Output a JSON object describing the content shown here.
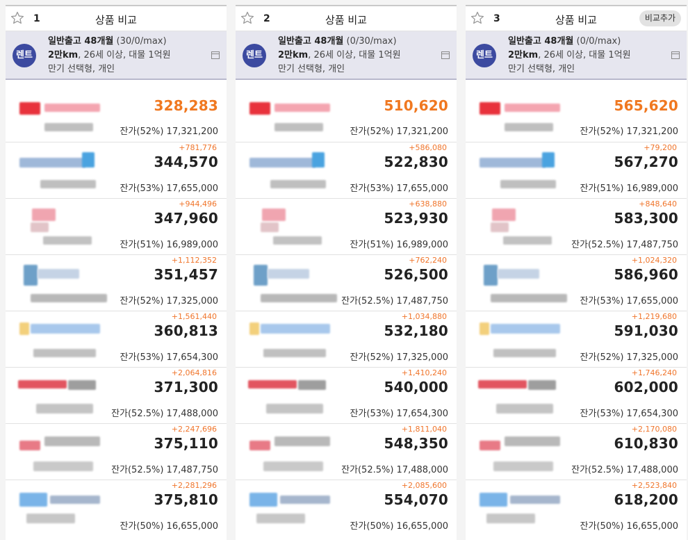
{
  "columns": [
    {
      "num": "1",
      "title": "상품 비교",
      "add_label": "",
      "badge": "렌트",
      "cond": {
        "line1_bold": "일반출고 48개월",
        "line1_paren": "(30/0/max)",
        "line2_bold": "2만km",
        "line2_rest": ", 26세 이상, 대물 1억원",
        "line3": "만기 선택형, 개인"
      },
      "rows": [
        {
          "diff": "",
          "price": "328,283",
          "resid": "잔가(52%) 17,321,200"
        },
        {
          "diff": "+781,776",
          "price": "344,570",
          "resid": "잔가(53%) 17,655,000"
        },
        {
          "diff": "+944,496",
          "price": "347,960",
          "resid": "잔가(51%) 16,989,000"
        },
        {
          "diff": "+1,112,352",
          "price": "351,457",
          "resid": "잔가(52%) 17,325,000"
        },
        {
          "diff": "+1,561,440",
          "price": "360,813",
          "resid": "잔가(53%) 17,654,300"
        },
        {
          "diff": "+2,064,816",
          "price": "371,300",
          "resid": "잔가(52.5%) 17,488,000"
        },
        {
          "diff": "+2,247,696",
          "price": "375,110",
          "resid": "잔가(52.5%) 17,487,750"
        },
        {
          "diff": "+2,281,296",
          "price": "375,810",
          "resid": "잔가(50%) 16,655,000"
        }
      ]
    },
    {
      "num": "2",
      "title": "상품 비교",
      "add_label": "",
      "badge": "렌트",
      "cond": {
        "line1_bold": "일반출고 48개월",
        "line1_paren": "(0/30/max)",
        "line2_bold": "2만km",
        "line2_rest": ", 26세 이상, 대물 1억원",
        "line3": "만기 선택형, 개인"
      },
      "rows": [
        {
          "diff": "",
          "price": "510,620",
          "resid": "잔가(52%) 17,321,200"
        },
        {
          "diff": "+586,080",
          "price": "522,830",
          "resid": "잔가(53%) 17,655,000"
        },
        {
          "diff": "+638,880",
          "price": "523,930",
          "resid": "잔가(51%) 16,989,000"
        },
        {
          "diff": "+762,240",
          "price": "526,500",
          "resid": "잔가(52.5%) 17,487,750"
        },
        {
          "diff": "+1,034,880",
          "price": "532,180",
          "resid": "잔가(52%) 17,325,000"
        },
        {
          "diff": "+1,410,240",
          "price": "540,000",
          "resid": "잔가(53%) 17,654,300"
        },
        {
          "diff": "+1,811,040",
          "price": "548,350",
          "resid": "잔가(52.5%) 17,488,000"
        },
        {
          "diff": "+2,085,600",
          "price": "554,070",
          "resid": "잔가(50%) 16,655,000"
        }
      ]
    },
    {
      "num": "3",
      "title": "상품 비교",
      "add_label": "비교추가",
      "badge": "렌트",
      "cond": {
        "line1_bold": "일반출고 48개월",
        "line1_paren": "(0/0/max)",
        "line2_bold": "2만km",
        "line2_rest": ", 26세 이상, 대물 1억원",
        "line3": "만기 선택형, 개인"
      },
      "rows": [
        {
          "diff": "",
          "price": "565,620",
          "resid": "잔가(52%) 17,321,200"
        },
        {
          "diff": "+79,200",
          "price": "567,270",
          "resid": "잔가(51%) 16,989,000"
        },
        {
          "diff": "+848,640",
          "price": "583,300",
          "resid": "잔가(52.5%) 17,487,750"
        },
        {
          "diff": "+1,024,320",
          "price": "586,960",
          "resid": "잔가(53%) 17,655,000"
        },
        {
          "diff": "+1,219,680",
          "price": "591,030",
          "resid": "잔가(52%) 17,325,000"
        },
        {
          "diff": "+1,746,240",
          "price": "602,000",
          "resid": "잔가(53%) 17,654,300"
        },
        {
          "diff": "+2,170,080",
          "price": "610,830",
          "resid": "잔가(52.5%) 17,488,000"
        },
        {
          "diff": "+2,523,840",
          "price": "618,200",
          "resid": "잔가(50%) 16,655,000"
        }
      ]
    }
  ],
  "colors": {
    "accent_orange": "#f07820",
    "diff_orange": "#f0752b",
    "badge_blue": "#3c4aa0",
    "cond_bg": "#e6e6ef"
  },
  "icons": {
    "favorite": "star-outline-icon",
    "memo": "memo-window-icon"
  }
}
